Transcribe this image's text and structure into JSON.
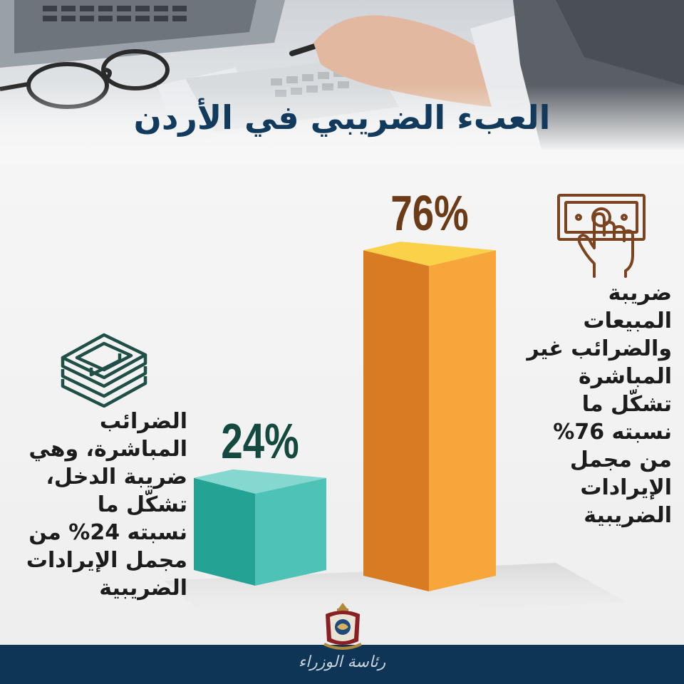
{
  "title": "العبء الضريبي في الأردن",
  "chart_data": {
    "type": "bar",
    "title": "العبء الضريبي في الأردن",
    "unit": "%",
    "categories": [
      "الضرائب المباشرة",
      "ضريبة المبيعات والضرائب غير المباشرة"
    ],
    "values": [
      24,
      76
    ],
    "value_labels": [
      "24%",
      "76%"
    ],
    "ylim": [
      0,
      100
    ],
    "grid": false,
    "colors": [
      "#4ec2b6",
      "#f7a63a"
    ]
  },
  "descriptions": {
    "direct": [
      "الضرائب",
      "المباشرة، وهي",
      "ضريبة الدخل،",
      "تشكّل ما",
      "نسبته 24% من",
      "مجمل الإيرادات",
      "الضريبية"
    ],
    "indirect": [
      "ضريبة",
      "المبيعات",
      "والضرائب غير",
      "المباشرة",
      "تشكّل ما",
      "نسبته 76%",
      "من مجمل",
      "الإيرادات",
      "الضريبية"
    ]
  },
  "icons": {
    "direct": "money-stack-icon",
    "indirect": "hand-banknote-icon",
    "emblem": "jordan-coat-of-arms-icon"
  },
  "footer": {
    "text": "رئاسة الوزراء"
  },
  "colors": {
    "title": "#123a5c",
    "footer": "#0e3555",
    "teal_front": "#4ec2b6",
    "teal_side": "#24a394",
    "teal_top": "#85d8cf",
    "orange_front": "#f7a63a",
    "orange_side": "#d97b22",
    "orange_top": "#f9d24a",
    "label_teal": "#14493f",
    "label_orange": "#6a3b16",
    "icon_teal": "#1f4f46",
    "icon_brown": "#7b4320"
  }
}
